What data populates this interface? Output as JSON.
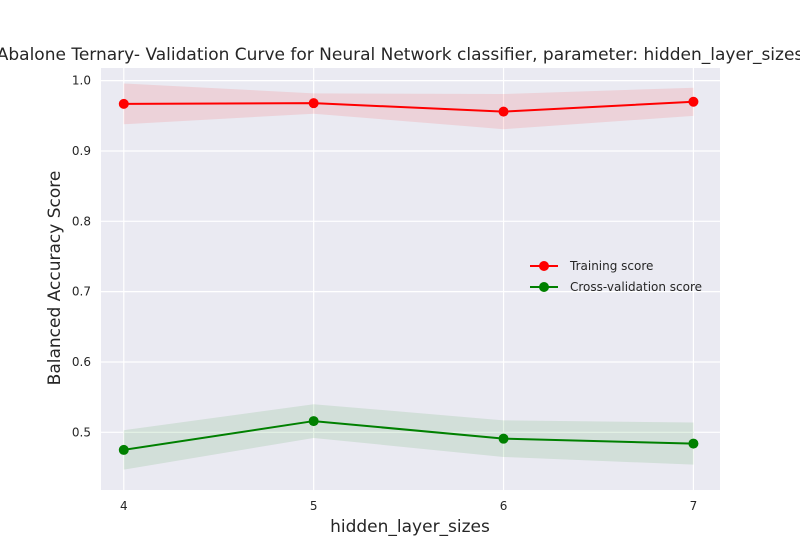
{
  "chart_data": {
    "type": "line",
    "title": "Abalone Ternary- Validation Curve for Neural Network classifier, parameter: hidden_layer_sizes",
    "xlabel": "hidden_layer_sizes",
    "ylabel": "Balanced Accuracy Score",
    "x": [
      4,
      5,
      6,
      7
    ],
    "x_tick_labels": [
      "4",
      "5",
      "6",
      "7"
    ],
    "xlim": [
      3.88,
      7.14
    ],
    "ylim": [
      0.418,
      1.018
    ],
    "y_ticks": [
      0.5,
      0.6,
      0.7,
      0.8,
      0.9,
      1.0
    ],
    "y_tick_labels": [
      "0.5",
      "0.6",
      "0.7",
      "0.8",
      "0.9",
      "1.0"
    ],
    "grid": true,
    "legend_position": "center-right",
    "background": "#eaeaf2",
    "series": [
      {
        "name": "Training score",
        "color": "#ff0000",
        "values": [
          0.967,
          0.968,
          0.956,
          0.97
        ],
        "band_lower": [
          0.938,
          0.953,
          0.931,
          0.95
        ],
        "band_upper": [
          0.996,
          0.982,
          0.981,
          0.99
        ]
      },
      {
        "name": "Cross-validation score",
        "color": "#008000",
        "values": [
          0.475,
          0.516,
          0.491,
          0.484
        ],
        "band_lower": [
          0.447,
          0.492,
          0.465,
          0.454
        ],
        "band_upper": [
          0.503,
          0.54,
          0.517,
          0.514
        ]
      }
    ]
  }
}
